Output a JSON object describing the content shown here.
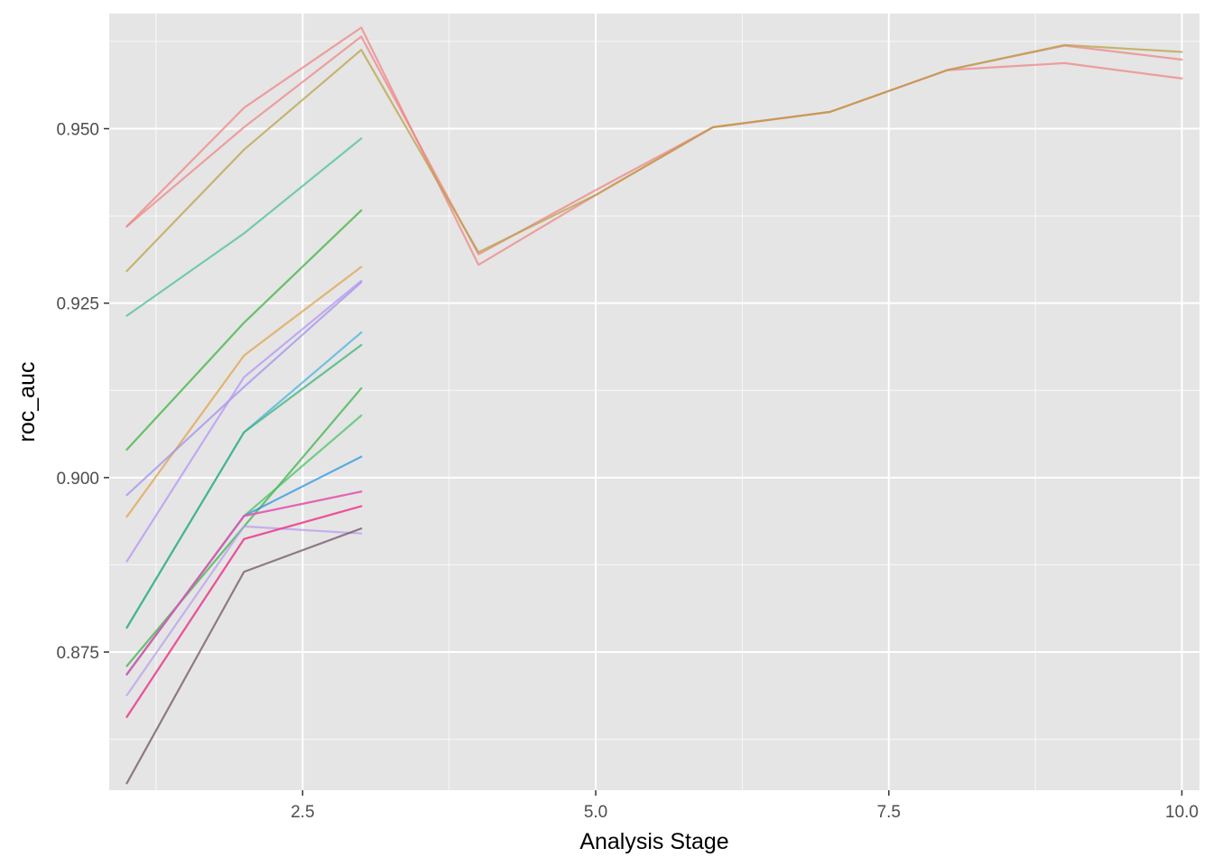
{
  "chart_data": {
    "type": "line",
    "title": "",
    "xlabel": "Analysis Stage",
    "ylabel": "roc_auc",
    "xlim": [
      0.85,
      10.15
    ],
    "ylim": [
      0.8552,
      0.9665
    ],
    "x_ticks": [
      2.5,
      5.0,
      7.5,
      10.0
    ],
    "x_tick_labels": [
      "2.5",
      "5.0",
      "7.5",
      "10.0"
    ],
    "y_ticks": [
      0.875,
      0.9,
      0.925,
      0.95
    ],
    "y_tick_labels": [
      "0.875",
      "0.900",
      "0.925",
      "0.950"
    ],
    "grid": true,
    "legend": "none",
    "colors": {
      "panel_background": "#e5e5e5",
      "grid": "#ffffff"
    },
    "series": [
      {
        "color": "#f08080",
        "x": [
          1,
          2,
          3,
          4,
          5,
          6,
          7,
          8,
          9,
          10
        ],
        "y": [
          0.936,
          0.953,
          0.9645,
          0.9305,
          0.9405,
          0.9502,
          0.9524,
          0.9584,
          0.9594,
          0.9572
        ]
      },
      {
        "color": "#f08080",
        "x": [
          1,
          2,
          3,
          4,
          5,
          6,
          7,
          8,
          9,
          10
        ],
        "y": [
          0.936,
          0.9502,
          0.9632,
          0.932,
          0.9412,
          0.9502,
          0.9524,
          0.9584,
          0.9619,
          0.9599
        ]
      },
      {
        "color": "#b8a040",
        "x": [
          1,
          2,
          3,
          4,
          5,
          6,
          7,
          8,
          9,
          10
        ],
        "y": [
          0.9296,
          0.947,
          0.9613,
          0.9323,
          0.9405,
          0.9502,
          0.9524,
          0.9584,
          0.962,
          0.961
        ]
      },
      {
        "color": "#40c090",
        "x": [
          1,
          2,
          3
        ],
        "y": [
          0.9232,
          0.935,
          0.9486
        ]
      },
      {
        "color": "#30b030",
        "x": [
          1,
          2,
          3
        ],
        "y": [
          0.904,
          0.9222,
          0.9383
        ]
      },
      {
        "color": "#e0a040",
        "x": [
          1,
          2,
          3
        ],
        "y": [
          0.8944,
          0.9175,
          0.9302
        ]
      },
      {
        "color": "#9b8ef0",
        "x": [
          1,
          2,
          3
        ],
        "y": [
          0.8975,
          0.913,
          0.928
        ]
      },
      {
        "color": "#b490f5",
        "x": [
          1,
          2,
          3
        ],
        "y": [
          0.888,
          0.9144,
          0.9282
        ]
      },
      {
        "color": "#40b0e0",
        "x": [
          1,
          2,
          3
        ],
        "y": [
          0.8785,
          0.9065,
          0.9208
        ]
      },
      {
        "color": "#30b070",
        "x": [
          1,
          2,
          3
        ],
        "y": [
          0.8785,
          0.9065,
          0.919
        ]
      },
      {
        "color": "#30b040",
        "x": [
          1,
          2,
          3
        ],
        "y": [
          0.873,
          0.893,
          0.9128
        ]
      },
      {
        "color": "#40c060",
        "x": [
          1,
          2,
          3
        ],
        "y": [
          0.8718,
          0.8945,
          0.9089
        ]
      },
      {
        "color": "#1f8fe0",
        "x": [
          1,
          2,
          3
        ],
        "y": [
          0.8718,
          0.8945,
          0.903
        ]
      },
      {
        "color": "#c070e0",
        "x": [
          1,
          2,
          3
        ],
        "y": [
          0.8718,
          0.8945,
          0.898
        ]
      },
      {
        "color": "#f050a0",
        "x": [
          1,
          2,
          3
        ],
        "y": [
          0.8718,
          0.8945,
          0.898
        ]
      },
      {
        "color": "#b898f0",
        "x": [
          1,
          2,
          3
        ],
        "y": [
          0.8688,
          0.893,
          0.892
        ]
      },
      {
        "color": "#e050b0",
        "x": [
          1,
          2,
          3
        ],
        "y": [
          0.8657,
          0.8912,
          0.8959
        ]
      },
      {
        "color": "#f0408a",
        "x": [
          1,
          2,
          3
        ],
        "y": [
          0.8657,
          0.8912,
          0.8959
        ]
      },
      {
        "color": "#6b4a5e",
        "x": [
          1,
          2,
          3
        ],
        "y": [
          0.8562,
          0.8865,
          0.8927
        ]
      }
    ]
  }
}
